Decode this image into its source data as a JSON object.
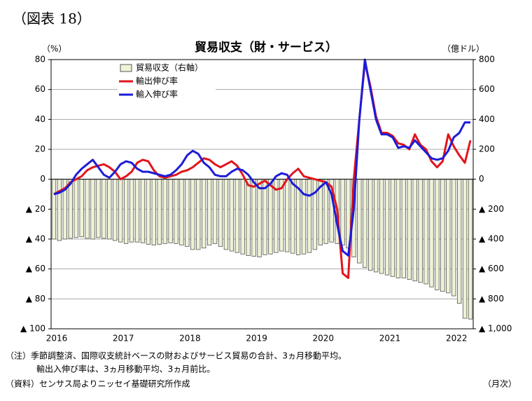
{
  "chart_data": {
    "type": "combo",
    "figure_label": "（図表 18）",
    "title": "貿易収支（財・サービス）",
    "y_unit": "（%）",
    "y2_unit": "（億ドル）",
    "x_unit": "（月次）",
    "notes": [
      "（注）季節調整済、国際収支統計ベースの財およびサービス貿易の合計、3ヵ月移動平均。",
      "輸出入伸び率は、3ヵ月移動平均、3ヵ月前比。",
      "（資料）センサス局よりニッセイ基礎研究所作成"
    ],
    "categories": [
      "2016",
      null,
      null,
      null,
      null,
      null,
      null,
      null,
      null,
      null,
      null,
      null,
      "2017",
      null,
      null,
      null,
      null,
      null,
      null,
      null,
      null,
      null,
      null,
      null,
      "2018",
      null,
      null,
      null,
      null,
      null,
      null,
      null,
      null,
      null,
      null,
      null,
      "2019",
      null,
      null,
      null,
      null,
      null,
      null,
      null,
      null,
      null,
      null,
      null,
      "2020",
      null,
      null,
      null,
      null,
      null,
      null,
      null,
      null,
      null,
      null,
      null,
      "2021",
      null,
      null,
      null,
      null,
      null,
      null,
      null,
      null,
      null,
      null,
      null,
      "2022",
      null,
      null,
      null
    ],
    "series": [
      {
        "name": "貿易収支（右軸）",
        "type": "bar",
        "axis": "y2",
        "color": "#eef2d6",
        "values": [
          -400,
          -410,
          -400,
          -395,
          -390,
          -385,
          -395,
          -400,
          -390,
          -395,
          -400,
          -410,
          -420,
          -430,
          -420,
          -420,
          -425,
          -435,
          -440,
          -435,
          -430,
          -425,
          -430,
          -440,
          -450,
          -470,
          -470,
          -460,
          -440,
          -430,
          -450,
          -470,
          -480,
          -490,
          -500,
          -510,
          -515,
          -520,
          -505,
          -500,
          -490,
          -480,
          -485,
          -495,
          -505,
          -500,
          -490,
          -470,
          -440,
          -430,
          -420,
          -430,
          -440,
          -460,
          -520,
          -560,
          -590,
          -610,
          -620,
          -630,
          -640,
          -650,
          -660,
          -660,
          -670,
          -680,
          -690,
          -700,
          -720,
          -740,
          -750,
          -760,
          -780,
          -830,
          -930,
          -935
        ]
      },
      {
        "name": "輸出伸び率",
        "type": "line",
        "color": "#e3141c",
        "values": [
          -10,
          -8,
          -6,
          -2,
          0,
          2,
          6,
          8,
          9,
          10,
          8,
          5,
          0,
          2,
          5,
          11,
          13,
          12,
          6,
          2,
          1,
          2,
          3,
          5,
          6,
          8,
          11,
          14,
          13,
          10,
          8,
          10,
          12,
          9,
          3,
          -4,
          -5,
          -3,
          -1,
          -4,
          -7,
          -6,
          0,
          4,
          7,
          2,
          1,
          0,
          -1,
          -2,
          -5,
          -20,
          -63,
          -66,
          0,
          40,
          78,
          62,
          42,
          31,
          31,
          29,
          24,
          23,
          20,
          30,
          23,
          20,
          12,
          8,
          12,
          30,
          22,
          16,
          11,
          26
        ]
      },
      {
        "name": "輸入伸び率",
        "type": "line",
        "color": "#1c1cd8",
        "values": [
          -10,
          -9,
          -7,
          -3,
          3,
          7,
          10,
          13,
          8,
          3,
          1,
          5,
          10,
          12,
          11,
          7,
          5,
          5,
          4,
          3,
          2,
          3,
          6,
          10,
          16,
          19,
          17,
          11,
          8,
          3,
          2,
          2,
          5,
          7,
          6,
          3,
          -2,
          -6,
          -6,
          -3,
          2,
          4,
          3,
          -3,
          -6,
          -10,
          -11,
          -9,
          -5,
          -2,
          -10,
          -30,
          -48,
          -51,
          -20,
          40,
          80,
          60,
          40,
          30,
          30,
          28,
          21,
          22,
          21,
          26,
          22,
          18,
          14,
          13,
          14,
          19,
          28,
          31,
          38,
          38
        ]
      }
    ],
    "ylim": [
      -100,
      80
    ],
    "yticks": [
      80,
      60,
      40,
      20,
      0,
      {
        "value": -20,
        "label": "▲ 20"
      },
      {
        "value": -40,
        "label": "▲ 40"
      },
      {
        "value": -60,
        "label": "▲ 60"
      },
      {
        "value": -80,
        "label": "▲ 80"
      },
      {
        "value": -100,
        "label": "▲ 100"
      }
    ],
    "y2lim": [
      -1000,
      800
    ],
    "y2ticks": [
      800,
      600,
      400,
      200,
      0,
      {
        "value": -200,
        "label": "▲ 200"
      },
      {
        "value": -400,
        "label": "▲ 400"
      },
      {
        "value": -600,
        "label": "▲ 600"
      },
      {
        "value": -800,
        "label": "▲ 800"
      },
      {
        "value": -1000,
        "label": "▲ 1,000"
      }
    ],
    "grid": true
  }
}
